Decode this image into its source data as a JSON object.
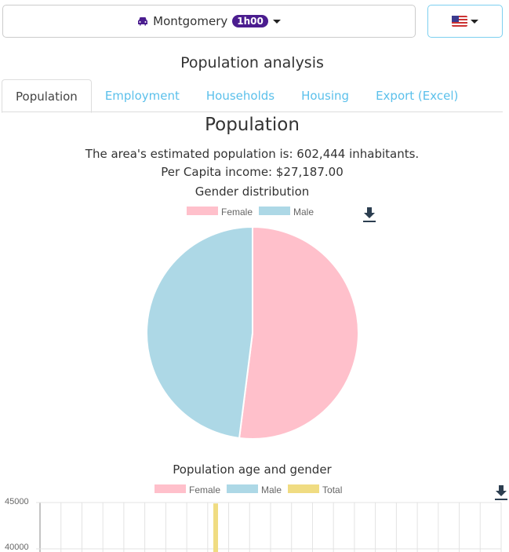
{
  "header": {
    "location": "Montgomery",
    "time_badge": "1h00",
    "car_icon": "car-icon",
    "language_icon": "us-flag-icon"
  },
  "page_title": "Population analysis",
  "tabs": [
    {
      "label": "Population",
      "active": true
    },
    {
      "label": "Employment"
    },
    {
      "label": "Households"
    },
    {
      "label": "Housing"
    },
    {
      "label": "Export (Excel)"
    }
  ],
  "section": {
    "title": "Population",
    "population_text": "The area's estimated population is: 602,444 inhabitants.",
    "income_text": "Per Capita income: $27,187.00"
  },
  "colors": {
    "female": "#ffc0cb",
    "male": "#add8e6",
    "total": "#f0dc82",
    "link": "#5bc0eb",
    "badge": "#4b1d8f"
  },
  "chart_data": [
    {
      "type": "pie",
      "title": "Gender distribution",
      "legend_position": "top",
      "categories": [
        "Female",
        "Male"
      ],
      "values": [
        52,
        48
      ]
    },
    {
      "type": "bar",
      "title": "Population age and gender",
      "legend_position": "top",
      "series": [
        {
          "name": "Female"
        },
        {
          "name": "Male"
        },
        {
          "name": "Total",
          "visible_values": [
            44900
          ]
        }
      ],
      "y_ticks": [
        "45000",
        "40000"
      ],
      "grid": true
    }
  ]
}
